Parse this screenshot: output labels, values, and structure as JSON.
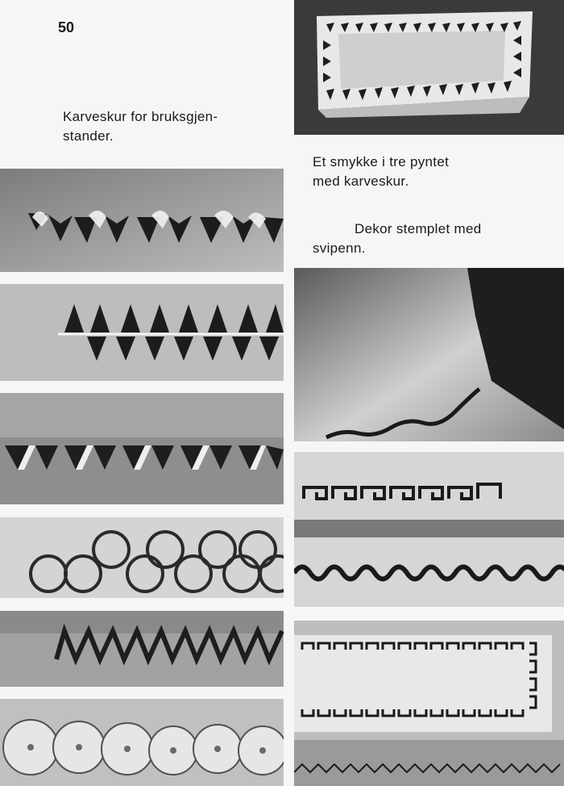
{
  "page": {
    "number": "50"
  },
  "captions": {
    "main_line1": "Karveskur for bruksgjen-",
    "main_line2": "stander.",
    "jewel_line1": "Et smykke i tre pyntet",
    "jewel_line2": "med karveskur.",
    "stamp_line1": "Dekor stemplet med",
    "stamp_line2": "svipenn."
  },
  "colors": {
    "paper": "#f6f6f4",
    "ink": "#1a1a1a",
    "wood_light": "#d8d8d6",
    "wood_mid": "#a9a9a7",
    "shadow": "#4a4a48"
  }
}
